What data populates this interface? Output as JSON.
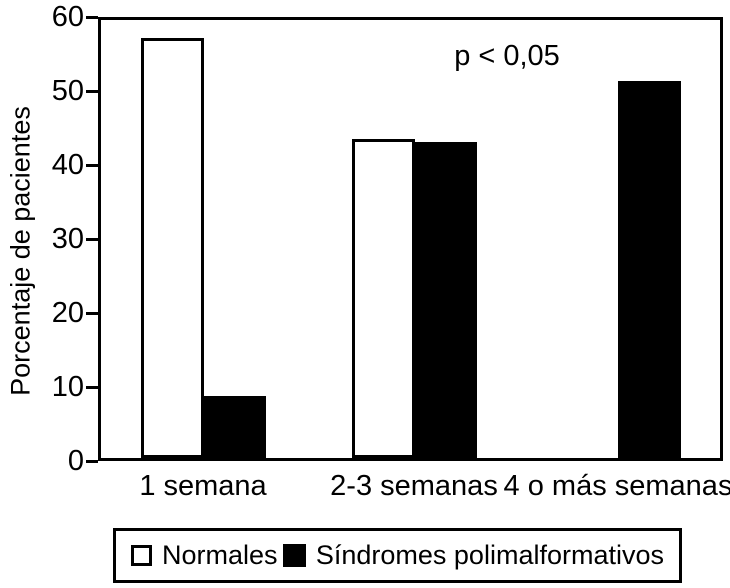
{
  "figure": {
    "background": "#ffffff",
    "foreground": "#000000"
  },
  "chart_data": {
    "type": "bar",
    "title": "",
    "xlabel": "",
    "ylabel": "Porcentaje de pacientes",
    "categories": [
      "1 semana",
      "2-3 semanas",
      "4 o más semanas"
    ],
    "series": [
      {
        "name": "Normales",
        "fill": "#ffffff",
        "border": "#000000",
        "values": [
          57.2,
          43.4,
          0
        ]
      },
      {
        "name": "Síndromes polimalformativos",
        "fill": "#000000",
        "border": "#000000",
        "values": [
          8.4,
          43.0,
          51.3
        ]
      }
    ],
    "ylim": [
      0,
      60
    ],
    "yticks": [
      0,
      10,
      20,
      30,
      40,
      50,
      60
    ],
    "annotation": "p < 0,05",
    "legend_position": "bottom",
    "grid": false
  }
}
